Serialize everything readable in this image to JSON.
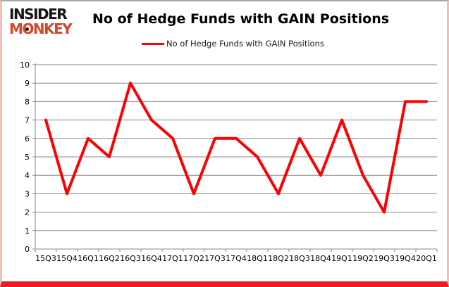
{
  "frame": {
    "logo": {
      "line1": "INSIDER",
      "line2": "MONKEY",
      "brand_black": "#141414",
      "brand_red": "#d94527"
    },
    "title": "No of Hedge Funds with GAIN Positions",
    "legend": {
      "label": "No of Hedge Funds with GAIN Positions",
      "color": "#ff0000"
    }
  },
  "chart_data": {
    "type": "line",
    "title": "No of Hedge Funds with GAIN Positions",
    "categories": [
      "15Q3",
      "15Q4",
      "16Q1",
      "16Q2",
      "16Q3",
      "16Q4",
      "17Q1",
      "17Q2",
      "17Q3",
      "17Q4",
      "18Q1",
      "18Q2",
      "18Q3",
      "18Q4",
      "19Q1",
      "19Q2",
      "19Q3",
      "19Q4",
      "20Q1"
    ],
    "series": [
      {
        "name": "No of Hedge Funds with GAIN Positions",
        "values": [
          7,
          3,
          6,
          5,
          9,
          7,
          6,
          3,
          6,
          6,
          5,
          3,
          6,
          4,
          7,
          4,
          2,
          8,
          8
        ],
        "color": "#ff0000"
      }
    ],
    "xlabel": "",
    "ylabel": "",
    "ylim": [
      0,
      10
    ],
    "yticks": [
      0,
      1,
      2,
      3,
      4,
      5,
      6,
      7,
      8,
      9,
      10
    ],
    "grid": true,
    "legend_position": "top",
    "gridline_color": "#8a8a8a",
    "axis_label_color": "#000000",
    "line_width": 4
  }
}
